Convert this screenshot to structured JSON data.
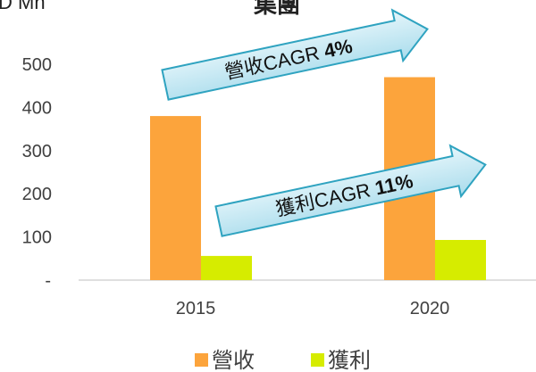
{
  "chart_data": {
    "type": "bar",
    "title": "集團",
    "y_label": "D Mn",
    "categories": [
      "2015",
      "2020"
    ],
    "series": [
      {
        "name": "營收",
        "color": "#fca43c",
        "values": [
          380,
          470
        ]
      },
      {
        "name": "獲利",
        "color": "#d6ec00",
        "values": [
          56,
          93
        ]
      }
    ],
    "ylim": [
      0,
      600
    ],
    "yticks": [
      {
        "value": 0,
        "label": "-"
      },
      100,
      200,
      300,
      400,
      500
    ],
    "grid": false,
    "legend": "bottom",
    "annotations": [
      {
        "text": "營收CAGR",
        "emphasis": "4%"
      },
      {
        "text": "獲利CAGR",
        "emphasis": "11%"
      }
    ]
  }
}
